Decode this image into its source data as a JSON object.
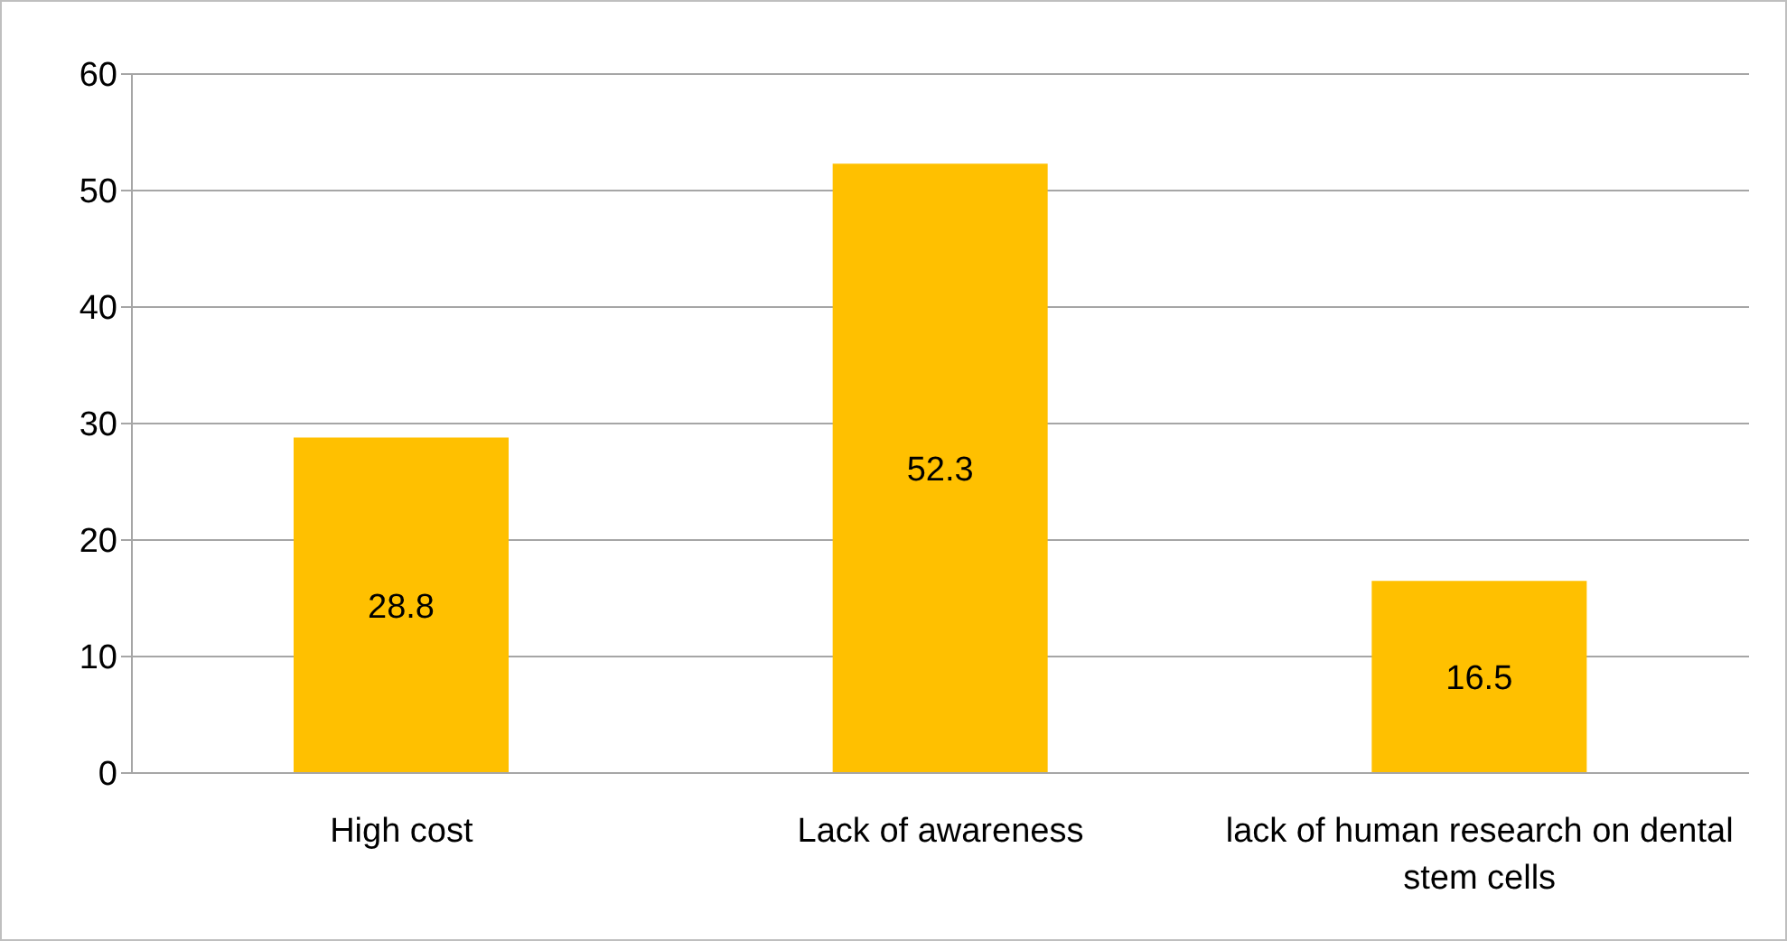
{
  "chart_data": {
    "type": "bar",
    "categories": [
      "High cost",
      "Lack of awareness",
      "lack of human research on dental stem cells"
    ],
    "values": [
      28.8,
      52.3,
      16.5
    ],
    "color": "#ffc000",
    "ylim": [
      0,
      60
    ],
    "yticks": [
      0,
      10,
      20,
      30,
      40,
      50,
      60
    ],
    "grid": "y",
    "data_labels": true
  }
}
